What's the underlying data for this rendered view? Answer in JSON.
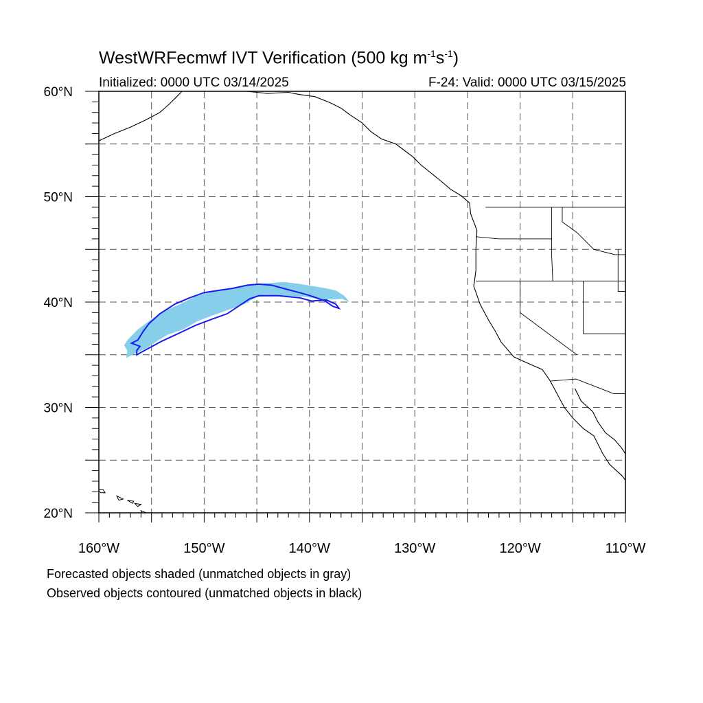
{
  "title": {
    "main": "WestWRFecmwf IVT Verification (500 kg m",
    "exp1": "-1",
    "mid": "s",
    "exp2": "-1",
    "end": ")"
  },
  "subtitle": {
    "initialized": "Initialized: 0000 UTC 03/14/2025",
    "valid": "F-24: Valid: 0000 UTC 03/15/2025"
  },
  "map": {
    "lon_range": [
      -160,
      -110
    ],
    "lat_range": [
      20,
      60
    ],
    "grid": "dashed, every 5 degrees",
    "x_tick_labels": [
      "160°W",
      "150°W",
      "140°W",
      "130°W",
      "120°W",
      "110°W"
    ],
    "y_tick_labels": [
      "60°N",
      "50°N",
      "40°N",
      "30°N",
      "20°N"
    ],
    "forecast_object": {
      "fill_color": "#87ceeb",
      "outline_lonlat": [
        [
          -157.4,
          34.7
        ],
        [
          -156.6,
          35.1
        ],
        [
          -155.5,
          35.6
        ],
        [
          -154.6,
          36.2
        ],
        [
          -153.5,
          36.9
        ],
        [
          -152.0,
          37.4
        ],
        [
          -150.6,
          38.2
        ],
        [
          -149.0,
          38.8
        ],
        [
          -147.6,
          39.3
        ],
        [
          -146.2,
          39.8
        ],
        [
          -145.0,
          40.5
        ],
        [
          -142.8,
          40.6
        ],
        [
          -140.4,
          40.5
        ],
        [
          -138.8,
          40.2
        ],
        [
          -136.9,
          40.3
        ],
        [
          -136.2,
          40.0
        ],
        [
          -136.7,
          40.6
        ],
        [
          -137.5,
          41.1
        ],
        [
          -138.4,
          41.3
        ],
        [
          -139.6,
          41.5
        ],
        [
          -140.8,
          41.7
        ],
        [
          -142.4,
          41.9
        ],
        [
          -144.1,
          41.8
        ],
        [
          -145.6,
          41.7
        ],
        [
          -146.8,
          41.4
        ],
        [
          -148.0,
          41.2
        ],
        [
          -149.6,
          40.9
        ],
        [
          -150.9,
          40.5
        ],
        [
          -152.3,
          39.8
        ],
        [
          -153.7,
          39.2
        ],
        [
          -155.1,
          38.3
        ],
        [
          -156.3,
          37.4
        ],
        [
          -157.2,
          36.5
        ],
        [
          -157.6,
          35.9
        ],
        [
          -157.3,
          35.4
        ]
      ]
    },
    "observed_object": {
      "contour_color": "#1a1aee",
      "outline_lonlat": [
        [
          -156.4,
          35.0
        ],
        [
          -155.3,
          35.6
        ],
        [
          -154.0,
          36.3
        ],
        [
          -152.5,
          37.0
        ],
        [
          -150.8,
          37.8
        ],
        [
          -149.2,
          38.4
        ],
        [
          -147.8,
          38.9
        ],
        [
          -146.6,
          39.7
        ],
        [
          -145.7,
          40.3
        ],
        [
          -144.8,
          40.6
        ],
        [
          -142.9,
          40.6
        ],
        [
          -140.9,
          40.4
        ],
        [
          -139.8,
          40.1
        ],
        [
          -138.4,
          40.2
        ],
        [
          -137.5,
          39.8
        ],
        [
          -137.2,
          39.4
        ],
        [
          -137.8,
          39.6
        ],
        [
          -138.5,
          40.1
        ],
        [
          -139.6,
          40.5
        ],
        [
          -140.6,
          40.8
        ],
        [
          -142.1,
          41.2
        ],
        [
          -143.6,
          41.6
        ],
        [
          -144.8,
          41.7
        ],
        [
          -145.9,
          41.6
        ],
        [
          -147.3,
          41.3
        ],
        [
          -148.7,
          41.1
        ],
        [
          -150.0,
          40.9
        ],
        [
          -151.4,
          40.4
        ],
        [
          -152.8,
          39.8
        ],
        [
          -154.2,
          38.9
        ],
        [
          -155.2,
          38.0
        ],
        [
          -155.8,
          37.2
        ],
        [
          -156.3,
          36.4
        ],
        [
          -156.9,
          36.1
        ],
        [
          -156.1,
          35.8
        ],
        [
          -156.4,
          35.4
        ]
      ]
    },
    "coastline_lonlat": [
      [
        -146.0,
        60.0
      ],
      [
        -145.0,
        59.9
      ],
      [
        -144.0,
        59.8
      ],
      [
        -142.0,
        59.9
      ],
      [
        -141.0,
        59.7
      ],
      [
        -139.5,
        59.5
      ],
      [
        -138.0,
        58.9
      ],
      [
        -137.0,
        58.4
      ],
      [
        -136.2,
        57.8
      ],
      [
        -135.0,
        57.0
      ],
      [
        -134.2,
        56.2
      ],
      [
        -133.2,
        55.5
      ],
      [
        -131.8,
        55.0
      ],
      [
        -131.0,
        54.4
      ],
      [
        -130.2,
        53.8
      ],
      [
        -129.4,
        53.0
      ],
      [
        -128.4,
        52.2
      ],
      [
        -127.3,
        51.3
      ],
      [
        -126.6,
        50.7
      ],
      [
        -125.6,
        50.1
      ],
      [
        -124.8,
        49.4
      ],
      [
        -124.7,
        48.4
      ],
      [
        -124.1,
        46.8
      ],
      [
        -124.2,
        45.0
      ],
      [
        -124.2,
        43.0
      ],
      [
        -124.4,
        41.5
      ],
      [
        -123.8,
        39.8
      ],
      [
        -123.0,
        38.3
      ],
      [
        -122.4,
        37.3
      ],
      [
        -121.8,
        36.2
      ],
      [
        -120.6,
        34.8
      ],
      [
        -119.5,
        34.3
      ],
      [
        -117.9,
        33.6
      ],
      [
        -117.2,
        32.6
      ],
      [
        -116.6,
        31.5
      ],
      [
        -115.8,
        30.0
      ],
      [
        -115.0,
        29.0
      ],
      [
        -114.0,
        28.0
      ],
      [
        -113.0,
        27.3
      ],
      [
        -112.2,
        25.7
      ],
      [
        -111.5,
        24.6
      ],
      [
        -110.3,
        23.5
      ],
      [
        -110.0,
        23.1
      ]
    ],
    "gulf_coast_lonlat": [
      [
        -114.8,
        31.8
      ],
      [
        -114.2,
        30.6
      ],
      [
        -113.1,
        29.6
      ],
      [
        -112.6,
        28.6
      ],
      [
        -111.9,
        27.6
      ],
      [
        -111.0,
        26.9
      ],
      [
        -110.4,
        26.2
      ],
      [
        -110.0,
        25.6
      ]
    ],
    "alaska_coast_lonlat": [
      [
        -160.0,
        55.3
      ],
      [
        -158.5,
        56.0
      ],
      [
        -157.0,
        56.6
      ],
      [
        -155.5,
        57.3
      ],
      [
        -154.2,
        58.0
      ],
      [
        -153.3,
        58.8
      ],
      [
        -152.6,
        59.5
      ],
      [
        -152.1,
        60.0
      ]
    ],
    "border_lines_lonlat": [
      [
        [
          -123.3,
          49.0
        ],
        [
          -110.0,
          49.0
        ]
      ],
      [
        [
          -124.2,
          46.2
        ],
        [
          -122.0,
          46.0
        ],
        [
          -119.0,
          46.0
        ],
        [
          -117.0,
          46.0
        ],
        [
          -117.0,
          44.4
        ],
        [
          -116.9,
          42.0
        ]
      ],
      [
        [
          -124.2,
          42.0
        ],
        [
          -110.0,
          42.0
        ]
      ],
      [
        [
          -120.0,
          42.0
        ],
        [
          -120.0,
          39.0
        ],
        [
          -114.6,
          35.0
        ]
      ],
      [
        [
          -114.0,
          42.0
        ],
        [
          -114.0,
          37.0
        ],
        [
          -110.0,
          37.0
        ]
      ],
      [
        [
          -117.1,
          32.5
        ],
        [
          -114.7,
          32.7
        ],
        [
          -111.1,
          31.3
        ],
        [
          -110.0,
          31.3
        ]
      ],
      [
        [
          -117.0,
          49.0
        ],
        [
          -117.0,
          46.0
        ]
      ],
      [
        [
          -116.0,
          49.0
        ],
        [
          -116.0,
          47.6
        ],
        [
          -114.6,
          46.6
        ],
        [
          -113.0,
          45.0
        ],
        [
          -111.0,
          44.5
        ],
        [
          -110.0,
          44.5
        ]
      ],
      [
        [
          -110.7,
          45.0
        ],
        [
          -110.7,
          41.0
        ],
        [
          -110.0,
          41.0
        ]
      ]
    ],
    "hawaii_islands_lonlat": [
      [
        [
          -160.2,
          22.2
        ],
        [
          -159.6,
          22.2
        ],
        [
          -159.4,
          21.9
        ],
        [
          -159.8,
          21.9
        ]
      ],
      [
        [
          -158.3,
          21.6
        ],
        [
          -157.7,
          21.3
        ],
        [
          -158.1,
          21.2
        ]
      ],
      [
        [
          -157.3,
          21.2
        ],
        [
          -156.7,
          21.1
        ],
        [
          -156.8,
          20.9
        ]
      ],
      [
        [
          -156.6,
          20.9
        ],
        [
          -156.0,
          20.8
        ],
        [
          -156.3,
          20.6
        ]
      ],
      [
        [
          -156.0,
          20.2
        ],
        [
          -155.0,
          19.8
        ],
        [
          -155.7,
          19.6
        ]
      ]
    ]
  },
  "caption": {
    "line1": "Forecasted objects shaded (unmatched objects in gray)",
    "line2": "Observed objects contoured (unmatched objects in black)"
  }
}
